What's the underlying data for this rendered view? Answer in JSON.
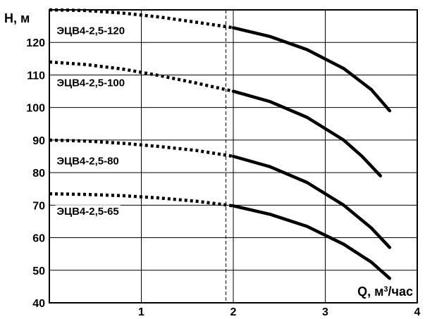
{
  "chart_data": {
    "type": "line",
    "title": "",
    "ylabel": "H, м",
    "xlabel_main": "Q, м",
    "xlabel_sup": "3",
    "xlabel_tail": "/час",
    "xlim": [
      0,
      4
    ],
    "ylim": [
      40,
      130
    ],
    "x_ticks": [
      {
        "value": 1,
        "label": "1"
      },
      {
        "value": 2,
        "label": "2"
      },
      {
        "value": 3,
        "label": "3"
      },
      {
        "value": 4,
        "label": "4"
      }
    ],
    "y_ticks": [
      {
        "value": 40,
        "label": "40"
      },
      {
        "value": 50,
        "label": "50"
      },
      {
        "value": 60,
        "label": "60"
      },
      {
        "value": 70,
        "label": "70"
      },
      {
        "value": 80,
        "label": "80"
      },
      {
        "value": 90,
        "label": "90"
      },
      {
        "value": 100,
        "label": "100"
      },
      {
        "value": 110,
        "label": "110"
      },
      {
        "value": 120,
        "label": "120"
      }
    ],
    "grid": true,
    "reference_line_x": 1.92,
    "working_range_start_x": 2.0,
    "series": [
      {
        "name": "ЭЦВ4-2,5-120",
        "label_anchor": {
          "x": 0.08,
          "y": 122.5
        },
        "x": [
          0.0,
          0.4,
          0.8,
          1.2,
          1.6,
          2.0,
          2.4,
          2.8,
          3.2,
          3.5,
          3.7
        ],
        "y": [
          130.0,
          129.8,
          129.0,
          127.8,
          126.2,
          124.5,
          121.8,
          117.8,
          112.0,
          105.5,
          99.0
        ]
      },
      {
        "name": "ЭЦВ4-2,5-100",
        "label_anchor": {
          "x": 0.08,
          "y": 106.5
        },
        "x": [
          0.0,
          0.4,
          0.8,
          1.2,
          1.6,
          2.0,
          2.4,
          2.8,
          3.2,
          3.4,
          3.6
        ],
        "y": [
          114.0,
          113.2,
          111.8,
          109.8,
          107.5,
          105.0,
          101.8,
          97.0,
          90.0,
          85.0,
          79.0
        ]
      },
      {
        "name": "ЭЦВ4-2,5-80",
        "label_anchor": {
          "x": 0.08,
          "y": 82.5
        },
        "x": [
          0.0,
          0.4,
          0.8,
          1.2,
          1.6,
          2.0,
          2.4,
          2.8,
          3.2,
          3.5,
          3.7
        ],
        "y": [
          90.0,
          89.7,
          89.0,
          88.0,
          86.8,
          85.0,
          81.8,
          77.0,
          70.0,
          63.0,
          57.0
        ]
      },
      {
        "name": "ЭЦВ4-2,5-65",
        "label_anchor": {
          "x": 0.08,
          "y": 67.0
        },
        "x": [
          0.0,
          0.4,
          0.8,
          1.2,
          1.6,
          2.0,
          2.4,
          2.8,
          3.2,
          3.5,
          3.7
        ],
        "y": [
          73.5,
          73.3,
          72.9,
          72.2,
          71.2,
          69.8,
          67.2,
          63.5,
          58.0,
          52.5,
          47.5
        ]
      }
    ]
  }
}
